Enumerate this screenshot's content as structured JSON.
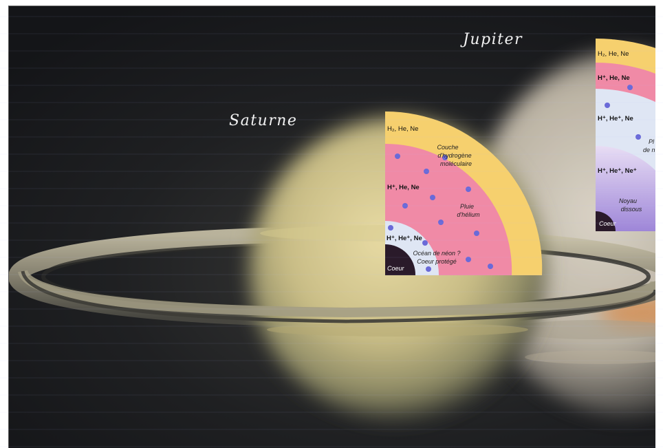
{
  "labels": {
    "jupiter": "Jupiter",
    "saturne": "Saturne"
  },
  "saturne_diagram": {
    "outer_layer": "H₂, He, Ne",
    "outer_layer_note_1": "Couche",
    "outer_layer_note_2": "d'hydrogène",
    "outer_layer_note_3": "moléculaire",
    "middle_layer": "H⁺, He, Ne",
    "middle_layer_note_1": "Pluie",
    "middle_layer_note_2": "d'hélium",
    "inner_layer": "H⁺, He⁺, Ne",
    "inner_layer_note_1": "Océan de néon ?",
    "inner_layer_note_2": "Coeur protégé",
    "core": "Coeur"
  },
  "jupiter_diagram": {
    "outer_layer": "H₂, He, Ne",
    "middle_layer": "H⁺, He, Ne",
    "inner_layer": "H⁺, He⁺, Ne",
    "inner_layer_note_1": "Pl",
    "inner_layer_note_2": "de n",
    "deep_layer": "H⁺, He⁺, Ne⁺",
    "deep_layer_note_1": "Noyau",
    "deep_layer_note_2": "dissous",
    "core": "Coeur"
  },
  "colors": {
    "outer_layer": "#f6d06e",
    "middle_layer": "#f08aa6",
    "inner_layer": "#dfe6f4",
    "core": "#2a1a2a",
    "droplet": "#6a6ad8",
    "jupiter_deep": "#b9a6e4"
  }
}
